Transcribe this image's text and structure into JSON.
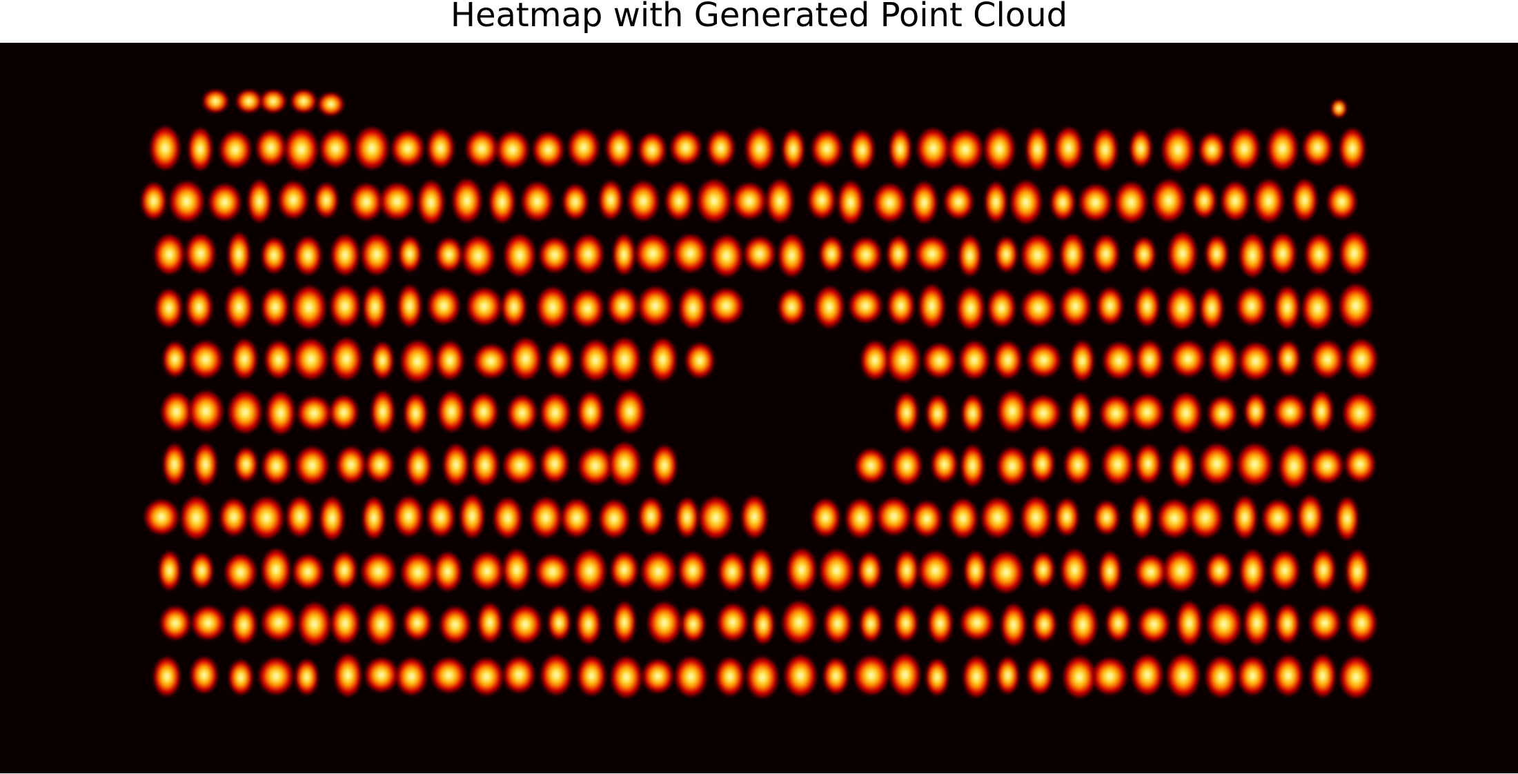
{
  "chart_data": {
    "type": "heatmap",
    "title": "Heatmap with Generated Point Cloud",
    "colormap": "hot",
    "colors": {
      "background": "#0a0000",
      "dark_red": "#8b0000",
      "red": "#e00000",
      "orange": "#ff8c00",
      "yellow": "#ffd400",
      "white_hot": "#ffffe0"
    },
    "grid": false,
    "axes_visible": false,
    "legend": "none",
    "xlim": [
      0,
      100
    ],
    "ylim": [
      0,
      100
    ],
    "spot_spacing_x": 2.3,
    "rows": [
      {
        "y": 85.5,
        "x_start": 10.8,
        "x_end": 91.2
      },
      {
        "y": 78.3,
        "x_start": 10.2,
        "x_end": 89.4
      },
      {
        "y": 71.0,
        "x_start": 11.0,
        "x_end": 89.8
      },
      {
        "y": 63.8,
        "x_start": 11.0,
        "x_end": 90.0
      },
      {
        "y": 56.6,
        "x_start": 11.4,
        "x_end": 90.6
      },
      {
        "y": 49.4,
        "x_start": 11.4,
        "x_end": 91.4
      },
      {
        "y": 42.2,
        "x_start": 11.4,
        "x_end": 90.6
      },
      {
        "y": 35.0,
        "x_start": 10.6,
        "x_end": 90.4
      },
      {
        "y": 27.7,
        "x_start": 11.2,
        "x_end": 90.0
      },
      {
        "y": 20.5,
        "x_start": 11.4,
        "x_end": 90.2
      },
      {
        "y": 13.3,
        "x_start": 11.2,
        "x_end": 90.6
      }
    ],
    "extra_spots": [
      {
        "x": 14.2,
        "y": 92.0
      },
      {
        "x": 16.4,
        "y": 92.0
      },
      {
        "x": 18.0,
        "y": 92.0
      },
      {
        "x": 20.0,
        "y": 92.0
      },
      {
        "x": 21.8,
        "y": 91.6
      },
      {
        "x": 88.2,
        "y": 91.0
      }
    ],
    "void": {
      "shape": "cross",
      "center": {
        "x": 52.0,
        "y": 52.0
      },
      "half_width_x": 10.6,
      "half_width_y": 19.0,
      "arm_rows": [
        {
          "y": 63.8,
          "x_min": 49.2,
          "x_max": 52.2
        },
        {
          "y": 56.6,
          "x_min": 46.8,
          "x_max": 55.6
        },
        {
          "y": 49.4,
          "x_min": 42.8,
          "x_max": 58.6
        },
        {
          "y": 42.2,
          "x_min": 45.6,
          "x_max": 55.2
        },
        {
          "y": 35.0,
          "x_min": 50.2,
          "x_max": 52.4
        },
        {
          "y": 27.7,
          "x_min": 50.8,
          "x_max": 51.6
        }
      ]
    }
  }
}
